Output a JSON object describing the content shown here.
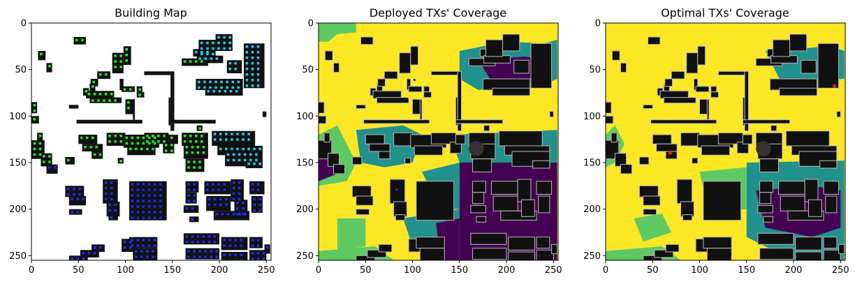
{
  "panels": [
    {
      "title": "Building Map",
      "kind": "building"
    },
    {
      "title": "Deployed TXs' Coverage",
      "kind": "deployed"
    },
    {
      "title": "Optimal TXs' Coverage",
      "kind": "optimal"
    }
  ],
  "axes": {
    "xticks": [
      0,
      50,
      100,
      150,
      200,
      250
    ],
    "yticks": [
      0,
      50,
      100,
      150,
      200,
      250
    ],
    "range": [
      0,
      255
    ]
  },
  "colors": {
    "building": "#111111",
    "building_outline": "#bbbbbb",
    "coverage_high": "#fde725",
    "coverage_mid_high": "#5ec962",
    "coverage_mid": "#21918c",
    "coverage_low": "#440154",
    "tx_green": "#22ee22",
    "tx_cyan": "#22ccee",
    "tx_blue": "#1f2cff",
    "tx_optimal": "#ff1a1a"
  }
}
